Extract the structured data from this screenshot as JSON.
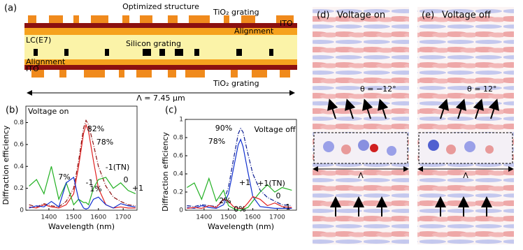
{
  "structure": {
    "panel": "(a)",
    "title": "Optimized structure",
    "tio2_top": "TiO₂ grating",
    "ito_top": "ITO",
    "alignment_top": "Alignment",
    "lc": "LC(E7)",
    "silicon": "Silicon grating",
    "alignment_bottom": "Alignment",
    "ito_bottom": "ITO",
    "tio2_bottom": "TiO₂ grating",
    "period": "Λ = 7.45 μm"
  },
  "fields": [
    {
      "panel": "(d)",
      "title": "Voltage on",
      "angle": "θ = −12°",
      "period": "Λ"
    },
    {
      "panel": "(e)",
      "title": "Voltage off",
      "angle": "θ = 12°",
      "period": "Λ"
    }
  ],
  "chart_data": [
    {
      "type": "line",
      "panel": "(b)",
      "x_label": "Wavelength (nm)",
      "y_label": "Diffraction efficiency",
      "x": [
        1320,
        1350,
        1380,
        1410,
        1440,
        1470,
        1500,
        1520,
        1540,
        1550,
        1560,
        1580,
        1600,
        1630,
        1660,
        1690,
        1720,
        1750
      ],
      "xlim": [
        1307,
        1756
      ],
      "xticks": [
        1400,
        1500,
        1600,
        1700
      ],
      "ylim": [
        0,
        0.95
      ],
      "yticks": [
        0,
        0.2,
        0.4,
        0.6,
        0.8
      ],
      "series": [
        {
          "name": "-1",
          "color": "#e02020",
          "style": "solid",
          "values": [
            0.03,
            0.02,
            0.05,
            0.03,
            0.02,
            0.05,
            0.15,
            0.4,
            0.7,
            0.78,
            0.72,
            0.45,
            0.2,
            0.05,
            0.02,
            0.03,
            0.02,
            0.02
          ]
        },
        {
          "name": "-1(TN)",
          "color": "#8b1010",
          "style": "dashdot",
          "values": [
            0.05,
            0.03,
            0.06,
            0.04,
            0.03,
            0.08,
            0.2,
            0.45,
            0.75,
            0.82,
            0.78,
            0.6,
            0.4,
            0.22,
            0.12,
            0.08,
            0.05,
            0.04
          ]
        },
        {
          "name": "0",
          "color": "#22b022",
          "style": "solid",
          "values": [
            0.22,
            0.28,
            0.15,
            0.4,
            0.1,
            0.25,
            0.05,
            0.1,
            0.07,
            0.07,
            0.05,
            0.2,
            0.28,
            0.3,
            0.2,
            0.25,
            0.18,
            0.15
          ]
        },
        {
          "name": "+1",
          "color": "#1030d0",
          "style": "solid",
          "values": [
            0.02,
            0.04,
            0.03,
            0.08,
            0.03,
            0.25,
            0.3,
            0.1,
            0.02,
            0.01,
            0.02,
            0.1,
            0.12,
            0.05,
            0.02,
            0.06,
            0.04,
            0.03
          ]
        }
      ],
      "annotations": [
        {
          "text": "Voltage on",
          "color": "#000000"
        },
        {
          "text": "82%",
          "color": "#8b1010"
        },
        {
          "text": "78%",
          "color": "#e02020"
        },
        {
          "text": "-1",
          "color": "#e02020"
        },
        {
          "text": "-1(TN)",
          "color": "#8b1010"
        },
        {
          "text": "7%",
          "color": "#22b022"
        },
        {
          "text": "0",
          "color": "#22b022"
        },
        {
          "text": "1%",
          "color": "#1030d0"
        },
        {
          "text": "+1",
          "color": "#1030d0"
        }
      ]
    },
    {
      "type": "line",
      "panel": "(c)",
      "x_label": "Wavelength (nm)",
      "y_label": "Diffraction efficiency",
      "x": [
        1330,
        1360,
        1390,
        1420,
        1450,
        1480,
        1500,
        1520,
        1540,
        1550,
        1560,
        1580,
        1600,
        1630,
        1660,
        1690,
        1720,
        1760
      ],
      "xlim": [
        1323,
        1779
      ],
      "xticks": [
        1400,
        1500,
        1600,
        1700
      ],
      "ylim": [
        0,
        1
      ],
      "yticks": [
        0,
        0.2,
        0.4,
        0.6,
        0.8,
        1
      ],
      "series": [
        {
          "name": "+1",
          "color": "#1030d0",
          "style": "solid",
          "values": [
            0.03,
            0.02,
            0.05,
            0.03,
            0.02,
            0.06,
            0.18,
            0.45,
            0.72,
            0.78,
            0.7,
            0.42,
            0.15,
            0.04,
            0.03,
            0.02,
            0.02,
            0.02
          ]
        },
        {
          "name": "+1(TN)",
          "color": "#0a1a90",
          "style": "dashdot",
          "values": [
            0.05,
            0.04,
            0.06,
            0.05,
            0.04,
            0.1,
            0.25,
            0.55,
            0.84,
            0.9,
            0.86,
            0.62,
            0.4,
            0.22,
            0.14,
            0.1,
            0.06,
            0.05
          ]
        },
        {
          "name": "0",
          "color": "#22b022",
          "style": "solid",
          "values": [
            0.25,
            0.3,
            0.12,
            0.35,
            0.1,
            0.22,
            0.05,
            0.02,
            0.0,
            0.0,
            0.01,
            0.03,
            0.1,
            0.2,
            0.28,
            0.2,
            0.25,
            0.22
          ]
        },
        {
          "name": "-1",
          "color": "#e02020",
          "style": "solid",
          "values": [
            0.02,
            0.03,
            0.02,
            0.05,
            0.03,
            0.12,
            0.1,
            0.04,
            0.02,
            0.02,
            0.02,
            0.08,
            0.15,
            0.12,
            0.05,
            0.08,
            0.04,
            0.03
          ]
        }
      ],
      "annotations": [
        {
          "text": "90%",
          "color": "#0a1a90"
        },
        {
          "text": "78%",
          "color": "#1030d0"
        },
        {
          "text": "Voltage off",
          "color": "#000000"
        },
        {
          "text": "+1",
          "color": "#1030d0"
        },
        {
          "text": "+1(TN)",
          "color": "#0a1a90"
        },
        {
          "text": "2%",
          "color": "#e02020"
        },
        {
          "text": "0%",
          "color": "#22b022"
        },
        {
          "text": "0",
          "color": "#22b022"
        },
        {
          "text": "-1",
          "color": "#e02020"
        }
      ]
    }
  ]
}
